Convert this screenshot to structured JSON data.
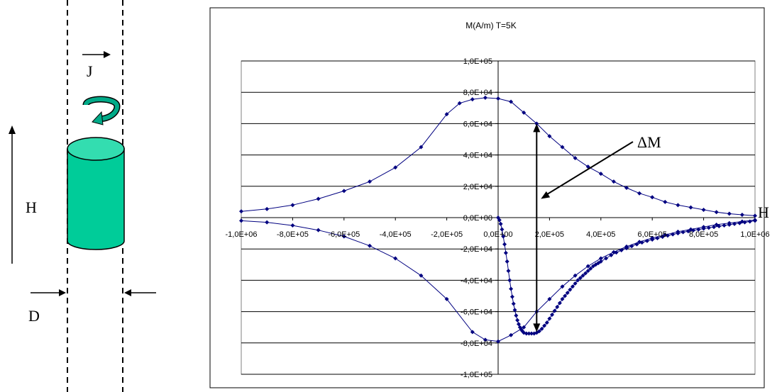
{
  "diagram": {
    "label_H": "H",
    "label_J": "J",
    "label_D": "D",
    "cylinder_color": "#00cc99",
    "cylinder_top_color": "#33ddb0",
    "arrow_color": "#00aa88"
  },
  "chart_data": {
    "type": "scatter",
    "title": "M(A/m) T=5K",
    "xlabel": "H",
    "ylabel": "",
    "annotation": "ΔM",
    "xlim": [
      -1000000,
      1000000
    ],
    "ylim": [
      -100000,
      100000
    ],
    "x_ticks": [
      "-1,0E+06",
      "-8,0E+05",
      "-6,0E+05",
      "-4,0E+05",
      "-2,0E+05",
      "0,0E+00",
      "2,0E+05",
      "4,0E+05",
      "6,0E+05",
      "8,0E+05",
      "1,0E+06"
    ],
    "y_ticks": [
      "-1,0E+05",
      "-8,0E+04",
      "-6,0E+04",
      "-4,0E+04",
      "-2,0E+04",
      "0,0E+00",
      "2,0E+04",
      "4,0E+04",
      "6,0E+04",
      "8,0E+04",
      "1,0E+05"
    ],
    "grid": "horizontal",
    "series_color": "#000080",
    "series": [
      {
        "x": [
          -1000000,
          -900000,
          -800000,
          -700000,
          -600000,
          -500000,
          -400000,
          -300000,
          -200000,
          -150000,
          -100000,
          -50000,
          0,
          50000,
          100000,
          150000,
          200000,
          250000,
          300000,
          350000,
          400000,
          450000,
          500000,
          550000,
          600000,
          650000,
          700000,
          750000,
          800000,
          850000,
          900000,
          950000,
          1000000
        ],
        "y": [
          4000,
          5500,
          8000,
          12000,
          17000,
          23000,
          32000,
          45000,
          66000,
          73000,
          75500,
          76500,
          76000,
          74000,
          67000,
          60000,
          52000,
          45000,
          38000,
          32500,
          28000,
          23000,
          19000,
          15500,
          13000,
          10000,
          8000,
          6500,
          5000,
          3500,
          2500,
          1800,
          1200
        ]
      },
      {
        "x": [
          -1000000,
          -900000,
          -800000,
          -700000,
          -600000,
          -500000,
          -400000,
          -300000,
          -200000,
          -100000,
          -50000,
          0,
          50000,
          100000,
          150000,
          200000,
          250000,
          300000,
          350000,
          400000,
          450000,
          500000,
          550000,
          600000,
          650000,
          700000,
          750000,
          800000,
          850000,
          900000,
          950000,
          1000000
        ],
        "y": [
          -2000,
          -3000,
          -5000,
          -8000,
          -12000,
          -18000,
          -26000,
          -37000,
          -52000,
          -73000,
          -78000,
          -79000,
          -75000,
          -70000,
          -60000,
          -52000,
          -44000,
          -37000,
          -31000,
          -26000,
          -22000,
          -18500,
          -15500,
          -13000,
          -11000,
          -9000,
          -7500,
          -6000,
          -4500,
          -3500,
          -2500,
          -1500
        ]
      },
      {
        "x": [
          0,
          5000,
          10000,
          15000,
          20000,
          25000,
          30000,
          35000,
          40000,
          45000,
          50000,
          55000,
          60000,
          65000,
          70000,
          75000,
          80000,
          85000,
          90000,
          95000,
          100000,
          110000,
          120000,
          130000,
          140000,
          150000,
          160000,
          170000,
          180000,
          190000,
          200000,
          210000,
          220000,
          230000,
          240000,
          250000,
          260000,
          270000,
          280000,
          290000,
          300000,
          310000,
          320000,
          330000,
          340000,
          350000,
          360000,
          370000,
          380000,
          390000,
          400000,
          420000,
          440000,
          460000,
          480000,
          500000,
          520000,
          540000,
          560000,
          580000,
          600000,
          620000,
          640000,
          660000,
          680000,
          700000,
          720000,
          740000,
          760000,
          780000,
          800000,
          820000,
          840000,
          860000,
          880000,
          900000,
          920000,
          940000,
          960000,
          980000,
          1000000
        ],
        "y": [
          0,
          -1500,
          -4000,
          -7500,
          -12000,
          -17000,
          -22500,
          -28000,
          -34000,
          -40000,
          -45500,
          -50500,
          -55000,
          -59000,
          -62500,
          -65500,
          -68000,
          -70000,
          -71500,
          -72500,
          -73500,
          -74000,
          -74000,
          -74000,
          -74000,
          -73500,
          -72500,
          -71000,
          -69000,
          -67000,
          -64500,
          -62000,
          -59500,
          -57000,
          -54500,
          -52000,
          -50000,
          -48000,
          -46000,
          -44000,
          -42000,
          -40000,
          -38500,
          -37000,
          -35500,
          -34000,
          -32500,
          -31000,
          -30000,
          -29000,
          -28000,
          -26000,
          -24000,
          -22300,
          -20800,
          -19500,
          -18200,
          -17000,
          -15900,
          -14900,
          -14000,
          -13100,
          -12300,
          -11500,
          -10700,
          -10000,
          -9300,
          -8700,
          -8100,
          -7600,
          -7000,
          -6500,
          -6000,
          -5500,
          -5000,
          -4500,
          -4000,
          -3500,
          -3000,
          -2500,
          -2000
        ]
      }
    ],
    "delta_m": {
      "x": 150000,
      "y_top": 60000,
      "y_bottom": -73000
    }
  }
}
